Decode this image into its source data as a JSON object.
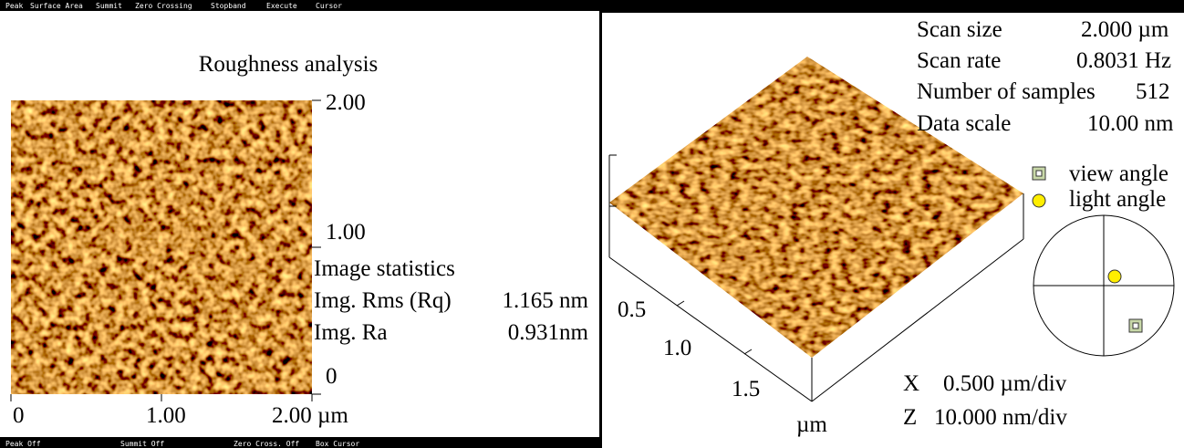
{
  "menu": [
    "Peak",
    "Surface Area",
    "Summit",
    "Zero Crossing",
    "Stopband",
    "Execute",
    "Cursor"
  ],
  "status": [
    "Peak Off",
    "Summit Off",
    "Zero Cross. Off",
    "Box Cursor"
  ],
  "left": {
    "title": "Roughness analysis",
    "y_labels": [
      "2.00",
      "1.00",
      "0"
    ],
    "x_labels": [
      "0",
      "1.00",
      "2.00 µm"
    ],
    "stats": {
      "heading": "Image statistics",
      "rows": [
        [
          "Img. Rms (Rq)",
          "1.165 nm"
        ],
        [
          "Img. Ra",
          "0.931nm"
        ]
      ]
    }
  },
  "right": {
    "info": [
      [
        "Scan size",
        "2.000 µm"
      ],
      [
        "Scan rate",
        "0.8031 Hz"
      ],
      [
        "Number of samples",
        "512"
      ],
      [
        "Data scale",
        "10.00 nm"
      ]
    ],
    "legend": [
      "view angle",
      "light angle"
    ],
    "axis_labels": [
      "0.5",
      "1.0",
      "1.5"
    ],
    "axis_unit": "µm",
    "scale": [
      [
        "X",
        "0.500 µm/div"
      ],
      [
        "Z",
        "10.000 nm/div"
      ]
    ]
  }
}
